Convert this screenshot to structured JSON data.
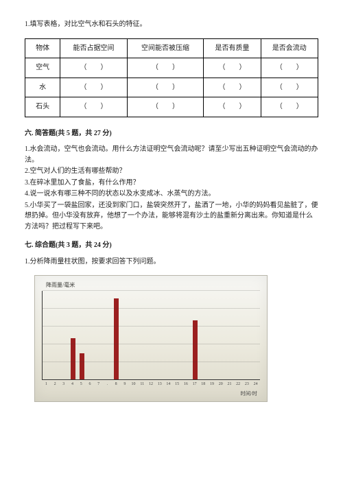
{
  "q1": {
    "text": "1.填写表格，对比空气水和石头的特征。"
  },
  "table": {
    "headers": [
      "物体",
      "能否占据空间",
      "空间能否被压缩",
      "是否有质量",
      "是否会流动"
    ],
    "rows": [
      {
        "name": "空气",
        "cells": [
          "（　　）",
          "（　　）",
          "（　　）",
          "（　　）"
        ]
      },
      {
        "name": "水",
        "cells": [
          "（　　）",
          "（　　）",
          "（　　）",
          "（　　）"
        ]
      },
      {
        "name": "石头",
        "cells": [
          "（　　）",
          "（　　）",
          "（　　）",
          "（　　）"
        ]
      }
    ],
    "col_widths_pct": [
      12,
      24,
      24,
      20,
      20
    ]
  },
  "section6": {
    "title": "六. 简答题(共 5 题，共 27 分)",
    "items": [
      "1.水会流动，空气也会流动。用什么方法证明空气会流动呢？请至少写出五种证明空气会流动的办法。",
      "2.空气对人们的生活有哪些帮助？",
      "3.在碎冰里加入了食盐，有什么作用？",
      "4.说一说水有哪三种不同的状态以及水变成冰、水蒸气的方法。",
      "5.小华买了一袋盐回家，还没到家门口，盐袋突然开了，盐洒了一地，小华的妈妈看见盐脏了，便想扔掉。但小华没有放弃，他想了一个办法，能够将混有沙土的盐重新分离出来。你知道是什么方法吗？把过程写下来吧。"
    ]
  },
  "section7": {
    "title": "七. 综合题(共 3 题，共 24 分)",
    "q1": "1.分析降雨量柱状图，按要求回答下列问题。"
  },
  "chart": {
    "type": "bar",
    "title": "降雨量/毫米",
    "xlabel": "时间/时",
    "xticks": [
      "1",
      "2",
      "3",
      "4",
      "5",
      "6",
      "7",
      ".",
      "8",
      "9",
      "10",
      "11",
      "12",
      "13",
      "14",
      "15",
      "16",
      "17",
      "18",
      "19",
      "20",
      "21",
      "22",
      "23",
      "24"
    ],
    "values": [
      0,
      0,
      0,
      28,
      18,
      0,
      0,
      0,
      55,
      0,
      0,
      0,
      0,
      0,
      0,
      0,
      0,
      40,
      0,
      0,
      0,
      0,
      0,
      0,
      0
    ],
    "bar_color": "#9b1f1f",
    "ylim": [
      0,
      60
    ],
    "grid_lines": 5,
    "grid_color": "rgba(60,60,55,.18)",
    "background_gradient": [
      "#f7f7f4",
      "#eceade",
      "#dcd9ca"
    ],
    "axis_color": "#333"
  }
}
